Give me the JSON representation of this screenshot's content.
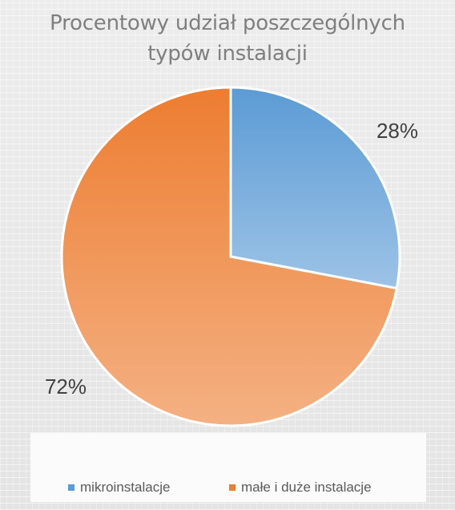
{
  "chart_data": {
    "type": "pie",
    "title": "Procentowy udział poszczególnych\ntypów instalacji",
    "categories": [
      "mikroinstalacje",
      "małe i duże instalacje"
    ],
    "values": [
      28,
      72
    ],
    "data_labels": [
      "28%",
      "72%"
    ],
    "colors": [
      "#5b9bd5",
      "#ed7d31"
    ],
    "legend_position": "bottom"
  }
}
